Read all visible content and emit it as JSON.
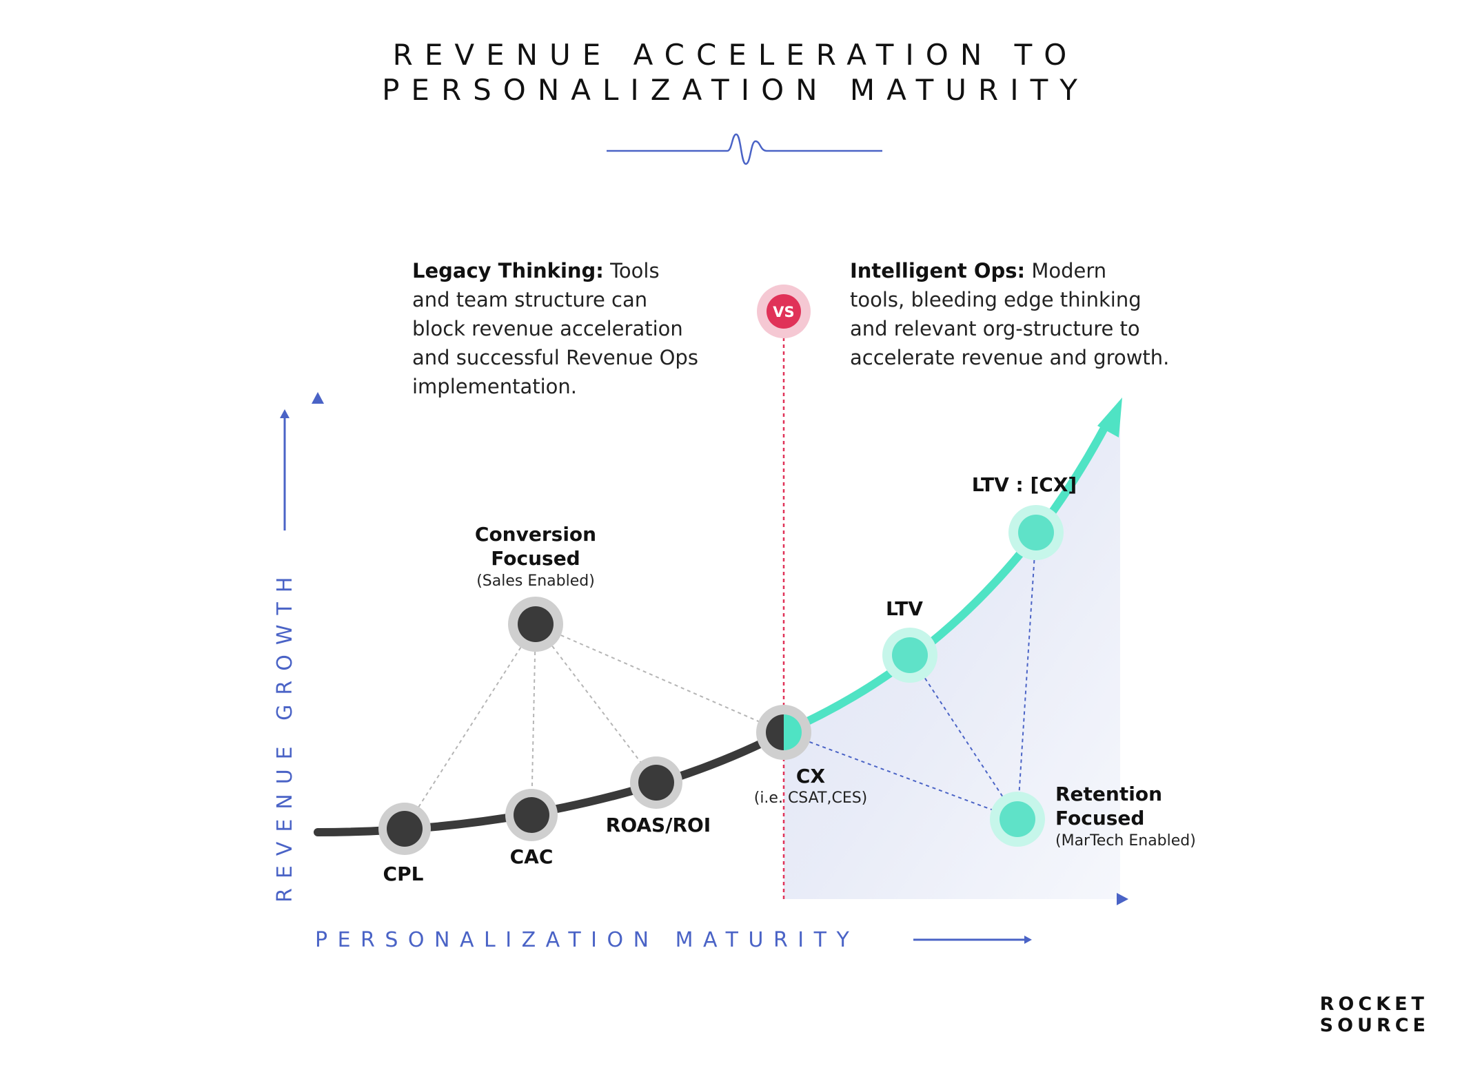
{
  "title": {
    "line1": "REVENUE ACCELERATION TO",
    "line2": "PERSONALIZATION MATURITY"
  },
  "axes": {
    "y_label": "REVENUE GROWTH",
    "x_label": "PERSONALIZATION MATURITY"
  },
  "divider_badge": "VS",
  "legacy": {
    "heading": "Legacy Thinking:",
    "lines": [
      "Tools",
      "and team structure can",
      "block revenue acceleration",
      "and successful Revenue Ops",
      "implementation."
    ]
  },
  "intelligent": {
    "heading": "Intelligent Ops:",
    "lines": [
      "Modern",
      "tools, bleeding edge thinking",
      "and relevant org-structure to",
      "accelerate revenue and growth."
    ]
  },
  "nodes": {
    "cpl": "CPL",
    "cac": "CAC",
    "roas": "ROAS/ROI",
    "cx": "CX",
    "cx_sub": "(i.e. CSAT,CES)",
    "ltv": "LTV",
    "ltv_cx": "LTV : [CX]",
    "conversion_l1": "Conversion",
    "conversion_l2": "Focused",
    "conversion_sub": "(Sales Enabled)",
    "retention_l1": "Retention",
    "retention_l2": "Focused",
    "retention_sub": "(MarTech Enabled)"
  },
  "logo": {
    "line1": "ROCKET",
    "line2": "SOURCE"
  },
  "colors": {
    "axis_blue": "#4a63c6",
    "teal": "#4fe3c4",
    "dark": "#3a3a3a",
    "red": "#e03258",
    "fill_lavender": "#dde3f4"
  }
}
